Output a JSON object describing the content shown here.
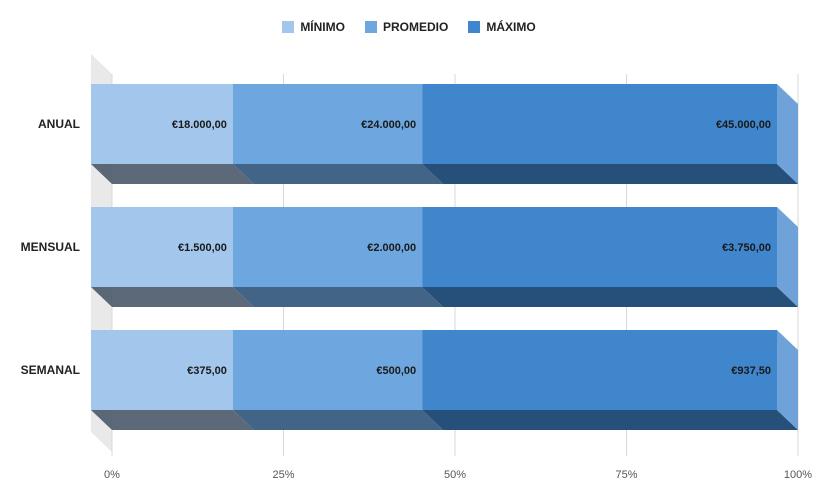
{
  "chart_data": {
    "type": "bar",
    "orientation": "horizontal",
    "stacked": "percent",
    "categories": [
      "ANUAL",
      "MENSUAL",
      "SEMANAL"
    ],
    "series": [
      {
        "name": "MÍNIMO",
        "color": "#a3c6ec",
        "values": [
          18000,
          1500,
          375
        ],
        "labels": [
          "€18.000,00",
          "€1.500,00",
          "€375,00"
        ]
      },
      {
        "name": "PROMEDIO",
        "color": "#6ea7df",
        "values": [
          24000,
          2000,
          500
        ],
        "labels": [
          "€24.000,00",
          "€2.000,00",
          "€500,00"
        ]
      },
      {
        "name": "MÁXIMO",
        "color": "#3f86cc",
        "values": [
          45000,
          3750,
          937.5
        ],
        "labels": [
          "€45.000,00",
          "€3.750,00",
          "€937,50"
        ]
      }
    ],
    "x_ticks": [
      "0%",
      "25%",
      "50%",
      "75%",
      "100%"
    ],
    "xlim": [
      0,
      100
    ],
    "legend_position": "top",
    "grid": true,
    "style": "3d"
  }
}
